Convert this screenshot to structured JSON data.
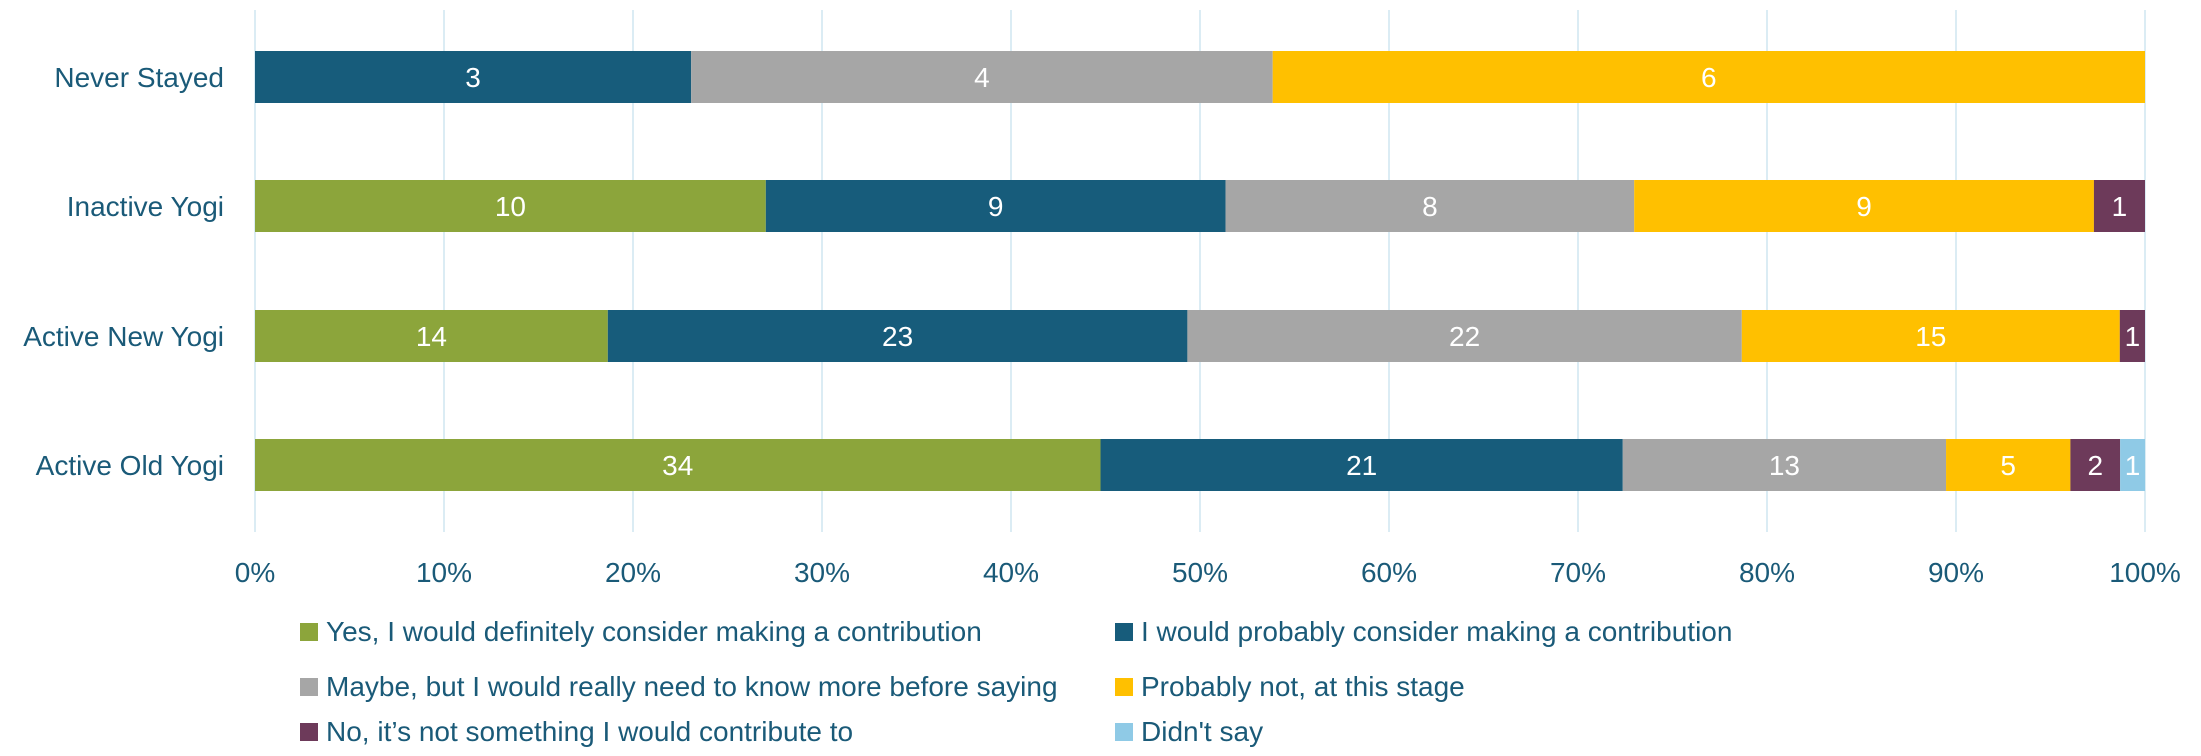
{
  "chart_data": {
    "type": "bar",
    "orientation": "horizontal",
    "stacking": "percent",
    "categories": [
      "Never Stayed",
      "Inactive Yogi",
      "Active New Yogi",
      "Active Old Yogi"
    ],
    "series": [
      {
        "name": "Yes, I would definitely consider making a contribution",
        "color": "#8ca53b",
        "values": [
          0,
          10,
          14,
          34
        ]
      },
      {
        "name": "I would probably consider making a contribution",
        "color": "#175c7b",
        "values": [
          3,
          9,
          23,
          21
        ]
      },
      {
        "name": "Maybe, but I would really need to know more before saying",
        "color": "#a6a6a6",
        "values": [
          4,
          8,
          22,
          13
        ]
      },
      {
        "name": "Probably not, at this stage",
        "color": "#ffc000",
        "values": [
          6,
          9,
          15,
          5
        ]
      },
      {
        "name": "No, it’s not something I would contribute to",
        "color": "#6d3a5a",
        "values": [
          0,
          1,
          1,
          2
        ]
      },
      {
        "name": "Didn't say",
        "color": "#8fcae6",
        "values": [
          0,
          0,
          0,
          1
        ]
      }
    ],
    "xlim": [
      0,
      100
    ],
    "xticks": [
      "0%",
      "10%",
      "20%",
      "30%",
      "40%",
      "50%",
      "60%",
      "70%",
      "80%",
      "90%",
      "100%"
    ],
    "grid": true,
    "legend_position": "bottom",
    "title": "",
    "xlabel": "",
    "ylabel": ""
  }
}
